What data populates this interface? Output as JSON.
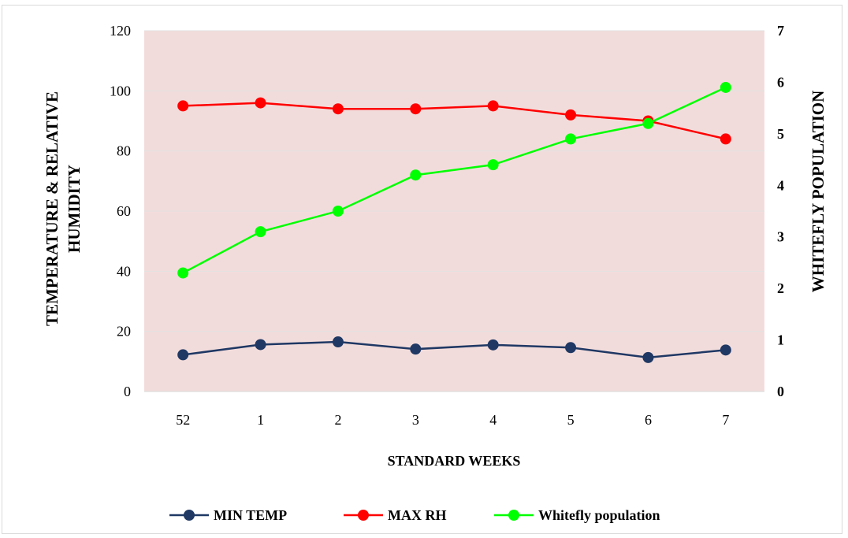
{
  "chart_data": {
    "type": "line",
    "categories": [
      "52",
      "1",
      "2",
      "3",
      "4",
      "5",
      "6",
      "7"
    ],
    "xlabel": "STANDARD WEEKS",
    "ylabel_left_lines": [
      "TEMPERATURE  & RELATIVE",
      "HUMIDITY"
    ],
    "ylabel_right": "WHITEFLY POPULATION",
    "ylim_left": [
      0,
      120
    ],
    "yticks_left": [
      "0",
      "20",
      "40",
      "60",
      "80",
      "100",
      "120"
    ],
    "ylim_right": [
      0,
      7
    ],
    "yticks_right": [
      "0",
      "1",
      "2",
      "3",
      "4",
      "5",
      "6",
      "7"
    ],
    "grid": true,
    "legend_position": "bottom",
    "plot_background": "#f2dcdb",
    "series": [
      {
        "name": "MIN TEMP",
        "axis": "left",
        "color": "#1f3864",
        "values": [
          12.2,
          15.6,
          16.5,
          14.1,
          15.5,
          14.6,
          11.3,
          13.8
        ]
      },
      {
        "name": "MAX RH",
        "axis": "left",
        "color": "#ff0000",
        "values": [
          95,
          96,
          94,
          94,
          95,
          92,
          90,
          84
        ]
      },
      {
        "name": "Whitefly population",
        "axis": "right",
        "color": "#00ff00",
        "values": [
          2.3,
          3.1,
          3.5,
          4.2,
          4.4,
          4.9,
          5.2,
          5.9
        ]
      }
    ]
  }
}
